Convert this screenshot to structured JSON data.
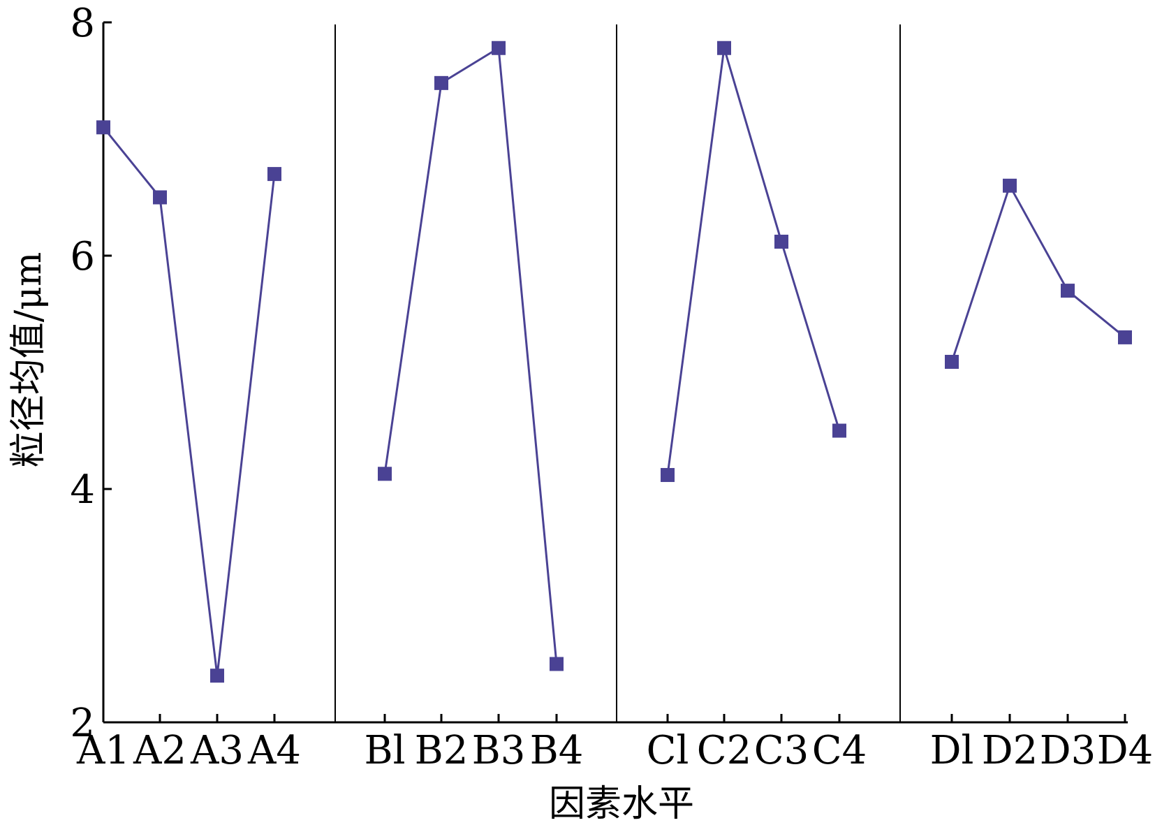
{
  "chart_data": {
    "type": "line",
    "xlabel": "因素水平",
    "ylabel": "粒径均值/μm",
    "ylim": [
      2,
      8
    ],
    "yticks": [
      "2",
      "4",
      "6",
      "8"
    ],
    "grid": false,
    "series_color": "#4a4294",
    "groups": [
      {
        "name": "A",
        "categories": [
          "A1",
          "A2",
          "A3",
          "A4"
        ],
        "values": [
          7.1,
          6.5,
          2.4,
          6.7
        ]
      },
      {
        "name": "B",
        "categories": [
          "Bl",
          "B2",
          "B3",
          "B4"
        ],
        "values": [
          4.13,
          7.48,
          7.78,
          2.5
        ]
      },
      {
        "name": "C",
        "categories": [
          "Cl",
          "C2",
          "C3",
          "C4"
        ],
        "values": [
          4.12,
          7.78,
          6.12,
          4.5
        ]
      },
      {
        "name": "D",
        "categories": [
          "Dl",
          "D2",
          "D3",
          "D4"
        ],
        "values": [
          5.09,
          6.6,
          5.7,
          5.3
        ]
      }
    ]
  }
}
